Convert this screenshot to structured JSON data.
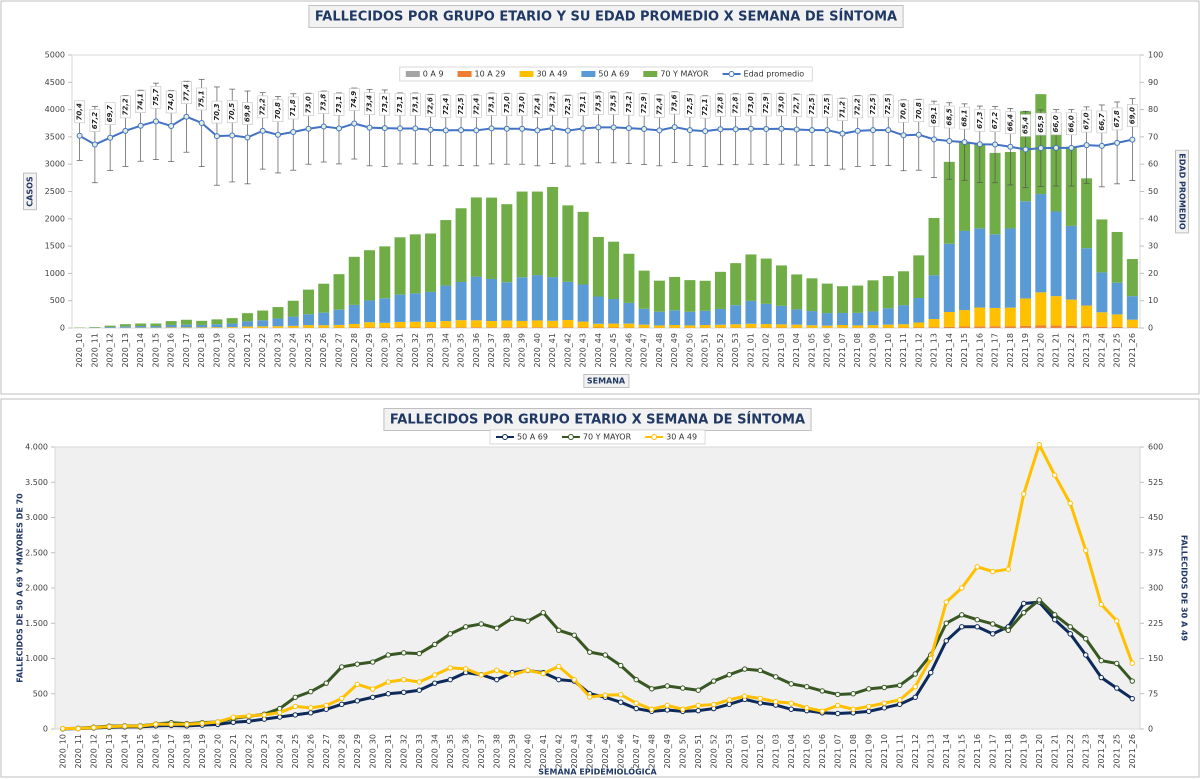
{
  "chart_data": [
    {
      "type": "bar",
      "title": "FALLECIDOS POR GRUPO ETARIO Y SU EDAD PROMEDIO X SEMANA DE SÍNTOMA",
      "x_label": "SEMANA",
      "y_label": "CASOS",
      "y2_label": "EDAD PROMEDIO",
      "stacked": true,
      "categories": [
        "2020_10",
        "2020_11",
        "2020_12",
        "2020_13",
        "2020_14",
        "2020_15",
        "2020_16",
        "2020_17",
        "2020_18",
        "2020_19",
        "2020_20",
        "2020_21",
        "2020_22",
        "2020_23",
        "2020_24",
        "2020_25",
        "2020_26",
        "2020_27",
        "2020_28",
        "2020_29",
        "2020_30",
        "2020_31",
        "2020_32",
        "2020_33",
        "2020_34",
        "2020_35",
        "2020_36",
        "2020_37",
        "2020_38",
        "2020_39",
        "2020_40",
        "2020_41",
        "2020_42",
        "2020_43",
        "2020_44",
        "2020_45",
        "2020_46",
        "2020_47",
        "2020_48",
        "2020_49",
        "2020_50",
        "2020_51",
        "2020_52",
        "2020_53",
        "2021_01",
        "2021_02",
        "2021_03",
        "2021_04",
        "2021_05",
        "2021_06",
        "2021_07",
        "2021_08",
        "2021_09",
        "2021_10",
        "2021_11",
        "2021_12",
        "2021_13",
        "2021_14",
        "2021_15",
        "2021_16",
        "2021_17",
        "2021_18",
        "2021_19",
        "2021_20",
        "2021_21",
        "2021_22",
        "2021_23",
        "2021_24",
        "2021_25",
        "2021_26"
      ],
      "ylim": [
        0,
        5000
      ],
      "yticks": [
        0,
        500,
        1000,
        1500,
        2000,
        2500,
        3000,
        3500,
        4000,
        4500,
        5000
      ],
      "y2lim": [
        0,
        100
      ],
      "y2ticks": [
        0,
        10,
        20,
        30,
        40,
        50,
        60,
        70,
        80,
        90,
        100
      ],
      "grid": false,
      "series": [
        {
          "name": "0 A 9",
          "color": "#a5a5a5",
          "values": [
            0,
            0,
            0,
            0,
            0,
            0,
            0,
            0,
            0,
            0,
            0,
            0,
            0,
            0,
            0,
            0,
            1,
            0,
            1,
            1,
            1,
            1,
            0,
            1,
            1,
            1,
            1,
            1,
            1,
            1,
            1,
            1,
            1,
            0,
            0,
            1,
            0,
            0,
            0,
            0,
            0,
            0,
            1,
            0,
            0,
            0,
            1,
            0,
            0,
            0,
            0,
            0,
            0,
            0,
            0,
            0,
            1,
            1,
            2,
            2,
            2,
            1,
            3,
            3,
            2,
            2,
            1,
            1,
            1,
            1
          ]
        },
        {
          "name": "10 A 29",
          "color": "#ed7d31",
          "values": [
            0,
            0,
            0,
            0,
            1,
            1,
            1,
            1,
            1,
            1,
            1,
            2,
            2,
            3,
            4,
            5,
            5,
            6,
            8,
            9,
            9,
            10,
            10,
            10,
            11,
            12,
            12,
            12,
            12,
            13,
            13,
            13,
            12,
            12,
            9,
            8,
            7,
            6,
            5,
            5,
            5,
            5,
            6,
            6,
            7,
            7,
            7,
            6,
            5,
            5,
            5,
            5,
            5,
            6,
            7,
            10,
            14,
            22,
            26,
            28,
            30,
            32,
            38,
            45,
            42,
            38,
            30,
            22,
            18,
            12
          ]
        },
        {
          "name": "30 A 49",
          "color": "#ffc000",
          "values": [
            1,
            1,
            3,
            5,
            6,
            6,
            10,
            10,
            10,
            12,
            15,
            25,
            28,
            30,
            35,
            48,
            45,
            50,
            65,
            95,
            85,
            100,
            105,
            100,
            115,
            130,
            128,
            115,
            125,
            115,
            125,
            118,
            133,
            105,
            68,
            72,
            73,
            55,
            42,
            50,
            42,
            50,
            52,
            62,
            70,
            65,
            58,
            55,
            45,
            38,
            50,
            42,
            48,
            55,
            62,
            90,
            150,
            270,
            300,
            345,
            335,
            340,
            500,
            605,
            540,
            480,
            380,
            265,
            230,
            140
          ]
        },
        {
          "name": "50 A 69",
          "color": "#5b9bd5",
          "values": [
            2,
            5,
            15,
            25,
            30,
            30,
            45,
            50,
            45,
            55,
            65,
            95,
            110,
            140,
            170,
            200,
            230,
            280,
            350,
            400,
            450,
            500,
            520,
            550,
            650,
            700,
            800,
            770,
            700,
            800,
            830,
            800,
            700,
            680,
            500,
            450,
            380,
            290,
            250,
            270,
            250,
            260,
            290,
            350,
            420,
            370,
            340,
            280,
            260,
            230,
            220,
            230,
            250,
            300,
            350,
            450,
            800,
            1250,
            1450,
            1450,
            1350,
            1450,
            1780,
            1800,
            1550,
            1350,
            1050,
            730,
            580,
            430
          ]
        },
        {
          "name": "70 Y MAYOR",
          "color": "#70ad47",
          "values": [
            5,
            10,
            25,
            40,
            45,
            45,
            70,
            90,
            75,
            90,
            100,
            150,
            180,
            210,
            290,
            450,
            530,
            650,
            880,
            920,
            950,
            1050,
            1080,
            1070,
            1200,
            1350,
            1450,
            1490,
            1430,
            1570,
            1530,
            1650,
            1400,
            1330,
            1090,
            1050,
            900,
            700,
            570,
            610,
            580,
            550,
            680,
            770,
            850,
            830,
            740,
            640,
            600,
            540,
            490,
            500,
            570,
            590,
            620,
            780,
            1050,
            1500,
            1620,
            1550,
            1490,
            1400,
            1650,
            1830,
            1620,
            1450,
            1280,
            970,
            930,
            680
          ]
        },
        {
          "name": "Edad promedio",
          "type": "line",
          "axis": "y2",
          "color": "#4472c4",
          "values": [
            70.4,
            67.2,
            69.7,
            72.2,
            74.1,
            75.7,
            74.0,
            77.4,
            75.1,
            70.3,
            70.5,
            69.8,
            72.2,
            70.8,
            71.8,
            73.0,
            73.8,
            73.1,
            74.9,
            73.4,
            73.2,
            73.1,
            73.1,
            72.6,
            72.4,
            72.5,
            72.4,
            73.1,
            73.0,
            73.0,
            72.4,
            73.2,
            72.3,
            73.1,
            73.5,
            73.5,
            73.2,
            72.9,
            72.4,
            73.6,
            72.5,
            72.1,
            72.8,
            72.8,
            73.0,
            72.9,
            73.0,
            72.7,
            72.5,
            72.5,
            71.2,
            72.2,
            72.5,
            72.5,
            70.6,
            70.8,
            69.1,
            68.5,
            68.1,
            67.3,
            67.2,
            66.4,
            65.4,
            65.9,
            66.0,
            66.0,
            67.0,
            66.7,
            67.8,
            69.0
          ],
          "value_labels": [
            "70,4",
            "67,2",
            "69,7",
            "72,2",
            "74,1",
            "75,7",
            "74,0",
            "77,4",
            "75,1",
            "70,3",
            "70,5",
            "69,8",
            "72,2",
            "70,8",
            "71,8",
            "73,0",
            "73,8",
            "73,1",
            "74,9",
            "73,4",
            "73,2",
            "73,1",
            "73,1",
            "72,6",
            "72,4",
            "72,5",
            "72,4",
            "73,1",
            "73,0",
            "73,0",
            "72,4",
            "73,2",
            "72,3",
            "73,1",
            "73,5",
            "73,5",
            "73,2",
            "72,9",
            "72,4",
            "73,6",
            "72,5",
            "72,1",
            "72,8",
            "72,8",
            "73,0",
            "72,9",
            "73,0",
            "72,7",
            "72,5",
            "72,5",
            "71,2",
            "72,2",
            "72,5",
            "72,5",
            "70,6",
            "70,8",
            "69,1",
            "68,5",
            "68,1",
            "67,3",
            "67,2",
            "66,4",
            "65,4",
            "65,9",
            "66,0",
            "66,0",
            "67,0",
            "66,7",
            "67,8",
            "69,0"
          ],
          "errors": [
            9,
            14,
            12,
            13,
            13,
            14,
            13,
            13,
            16,
            18,
            17,
            17,
            14,
            14,
            14,
            13,
            13,
            13,
            13,
            14,
            14,
            13,
            13,
            13,
            13,
            13,
            13,
            13,
            13,
            13,
            13,
            13,
            13,
            13,
            13,
            13,
            13,
            13,
            13,
            13,
            13,
            13,
            13,
            13,
            13,
            13,
            13,
            13,
            13,
            13,
            13,
            13,
            13,
            13,
            13,
            13,
            14,
            14,
            14,
            14,
            14,
            14,
            14,
            14,
            14,
            14,
            14,
            15,
            15,
            15
          ]
        }
      ]
    },
    {
      "type": "line",
      "title": "FALLECIDOS POR GRUPO ETARIO X SEMANA DE SÍNTOMA",
      "x_label": "SEMANA EPIDEMIOLÓGICA",
      "y_label": "FALLECIDOS DE 50 A 69 Y MAYORES DE 70",
      "y2_label": "FALLECIDOS DE 30 A 49",
      "categories": [
        "2020_10",
        "2020_11",
        "2020_12",
        "2020_13",
        "2020_14",
        "2020_15",
        "2020_16",
        "2020_17",
        "2020_18",
        "2020_19",
        "2020_20",
        "2020_21",
        "2020_22",
        "2020_23",
        "2020_24",
        "2020_25",
        "2020_26",
        "2020_27",
        "2020_28",
        "2020_29",
        "2020_30",
        "2020_31",
        "2020_32",
        "2020_33",
        "2020_34",
        "2020_35",
        "2020_36",
        "2020_37",
        "2020_38",
        "2020_39",
        "2020_40",
        "2020_41",
        "2020_42",
        "2020_43",
        "2020_44",
        "2020_45",
        "2020_46",
        "2020_47",
        "2020_48",
        "2020_49",
        "2020_50",
        "2020_51",
        "2020_52",
        "2020_53",
        "2021_01",
        "2021_02",
        "2021_03",
        "2021_04",
        "2021_05",
        "2021_06",
        "2021_07",
        "2021_08",
        "2021_09",
        "2021_10",
        "2021_11",
        "2021_12",
        "2021_13",
        "2021_14",
        "2021_15",
        "2021_16",
        "2021_17",
        "2021_18",
        "2021_19",
        "2021_20",
        "2021_21",
        "2021_22",
        "2021_23",
        "2021_24",
        "2021_25",
        "2021_26"
      ],
      "ylim": [
        0,
        4000
      ],
      "yticks": [
        0,
        500,
        {
          "value": 1000,
          "label": "1.000"
        },
        {
          "value": 1500,
          "label": "1.500"
        },
        {
          "value": 2000,
          "label": "2.000"
        },
        {
          "value": 2500,
          "label": "2.500"
        },
        {
          "value": 3000,
          "label": "3.000"
        },
        {
          "value": 3500,
          "label": "3.500"
        },
        {
          "value": 4000,
          "label": "4.000"
        }
      ],
      "y2lim": [
        0,
        600
      ],
      "y2ticks": [
        0,
        75,
        150,
        225,
        300,
        375,
        450,
        525,
        600
      ],
      "grid": false,
      "series": [
        {
          "name": "50 A 69",
          "color": "#0e2a5a",
          "values": [
            2,
            5,
            15,
            25,
            30,
            30,
            45,
            50,
            45,
            55,
            65,
            95,
            110,
            140,
            170,
            200,
            230,
            280,
            350,
            400,
            450,
            500,
            520,
            550,
            650,
            700,
            800,
            770,
            700,
            800,
            830,
            800,
            700,
            680,
            500,
            450,
            380,
            290,
            250,
            270,
            250,
            260,
            290,
            350,
            420,
            370,
            340,
            280,
            260,
            230,
            220,
            230,
            250,
            300,
            350,
            450,
            800,
            1250,
            1450,
            1450,
            1350,
            1450,
            1780,
            1800,
            1550,
            1350,
            1050,
            730,
            580,
            430
          ]
        },
        {
          "name": "70 Y MAYOR",
          "color": "#385723",
          "values": [
            5,
            10,
            25,
            40,
            45,
            45,
            70,
            90,
            75,
            90,
            100,
            150,
            180,
            210,
            290,
            450,
            530,
            650,
            880,
            920,
            950,
            1050,
            1080,
            1070,
            1200,
            1350,
            1450,
            1490,
            1430,
            1570,
            1530,
            1650,
            1400,
            1330,
            1090,
            1050,
            900,
            700,
            570,
            610,
            580,
            550,
            680,
            770,
            850,
            830,
            740,
            640,
            600,
            540,
            490,
            500,
            570,
            590,
            620,
            780,
            1050,
            1500,
            1620,
            1550,
            1490,
            1400,
            1650,
            1830,
            1620,
            1450,
            1280,
            970,
            930,
            680
          ]
        },
        {
          "name": "30 A 49",
          "color": "#ffc000",
          "axis": "y2",
          "values": [
            1,
            1,
            3,
            5,
            6,
            6,
            10,
            10,
            10,
            12,
            15,
            25,
            28,
            30,
            35,
            48,
            45,
            50,
            65,
            95,
            85,
            100,
            105,
            100,
            115,
            130,
            128,
            115,
            125,
            115,
            125,
            118,
            133,
            105,
            68,
            72,
            73,
            55,
            42,
            50,
            42,
            50,
            52,
            62,
            70,
            65,
            58,
            55,
            45,
            38,
            50,
            42,
            48,
            55,
            62,
            90,
            150,
            270,
            300,
            345,
            335,
            340,
            500,
            605,
            540,
            480,
            380,
            265,
            230,
            140
          ]
        }
      ]
    }
  ]
}
